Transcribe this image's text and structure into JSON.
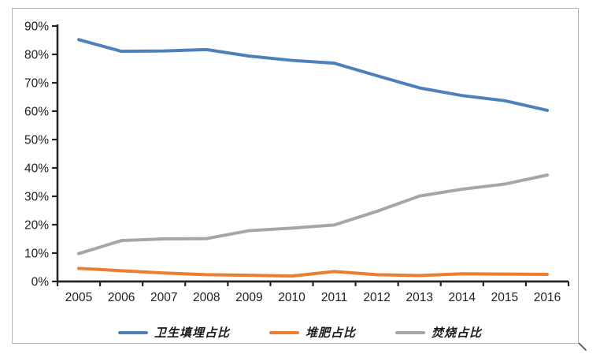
{
  "chart_data": {
    "type": "line",
    "title": "",
    "xlabel": "",
    "ylabel": "",
    "categories": [
      "2005",
      "2006",
      "2007",
      "2008",
      "2009",
      "2010",
      "2011",
      "2012",
      "2013",
      "2014",
      "2015",
      "2016"
    ],
    "series": [
      {
        "name": "卫生填埋占比",
        "slug": "landfill",
        "color": "#4E80BC",
        "values": [
          85.2,
          81.1,
          81.2,
          81.7,
          79.4,
          77.9,
          76.9,
          72.5,
          68.2,
          65.5,
          63.7,
          60.3
        ]
      },
      {
        "name": "堆肥占比",
        "slug": "compost",
        "color": "#ED7D31",
        "values": [
          4.6,
          3.8,
          3.0,
          2.4,
          2.2,
          1.9,
          3.5,
          2.4,
          2.1,
          2.7,
          2.6,
          2.5
        ]
      },
      {
        "name": "焚烧占比",
        "slug": "incineration",
        "color": "#A6A6A6",
        "values": [
          9.8,
          14.4,
          15.0,
          15.1,
          17.9,
          18.8,
          19.9,
          24.7,
          30.1,
          32.5,
          34.3,
          37.5
        ]
      }
    ],
    "ylim": [
      0,
      90
    ],
    "ytick_step": 10,
    "ytick_labels": [
      "0%",
      "10%",
      "20%",
      "30%",
      "40%",
      "50%",
      "60%",
      "70%",
      "80%",
      "90%"
    ],
    "grid": false,
    "legend_position": "bottom-center"
  },
  "style": {
    "axis_color": "#242424",
    "tick_label_color": "#1f1f1f",
    "frame_border_color": "#b2b2b2",
    "resize_handle_color": "#4d4d4d"
  }
}
